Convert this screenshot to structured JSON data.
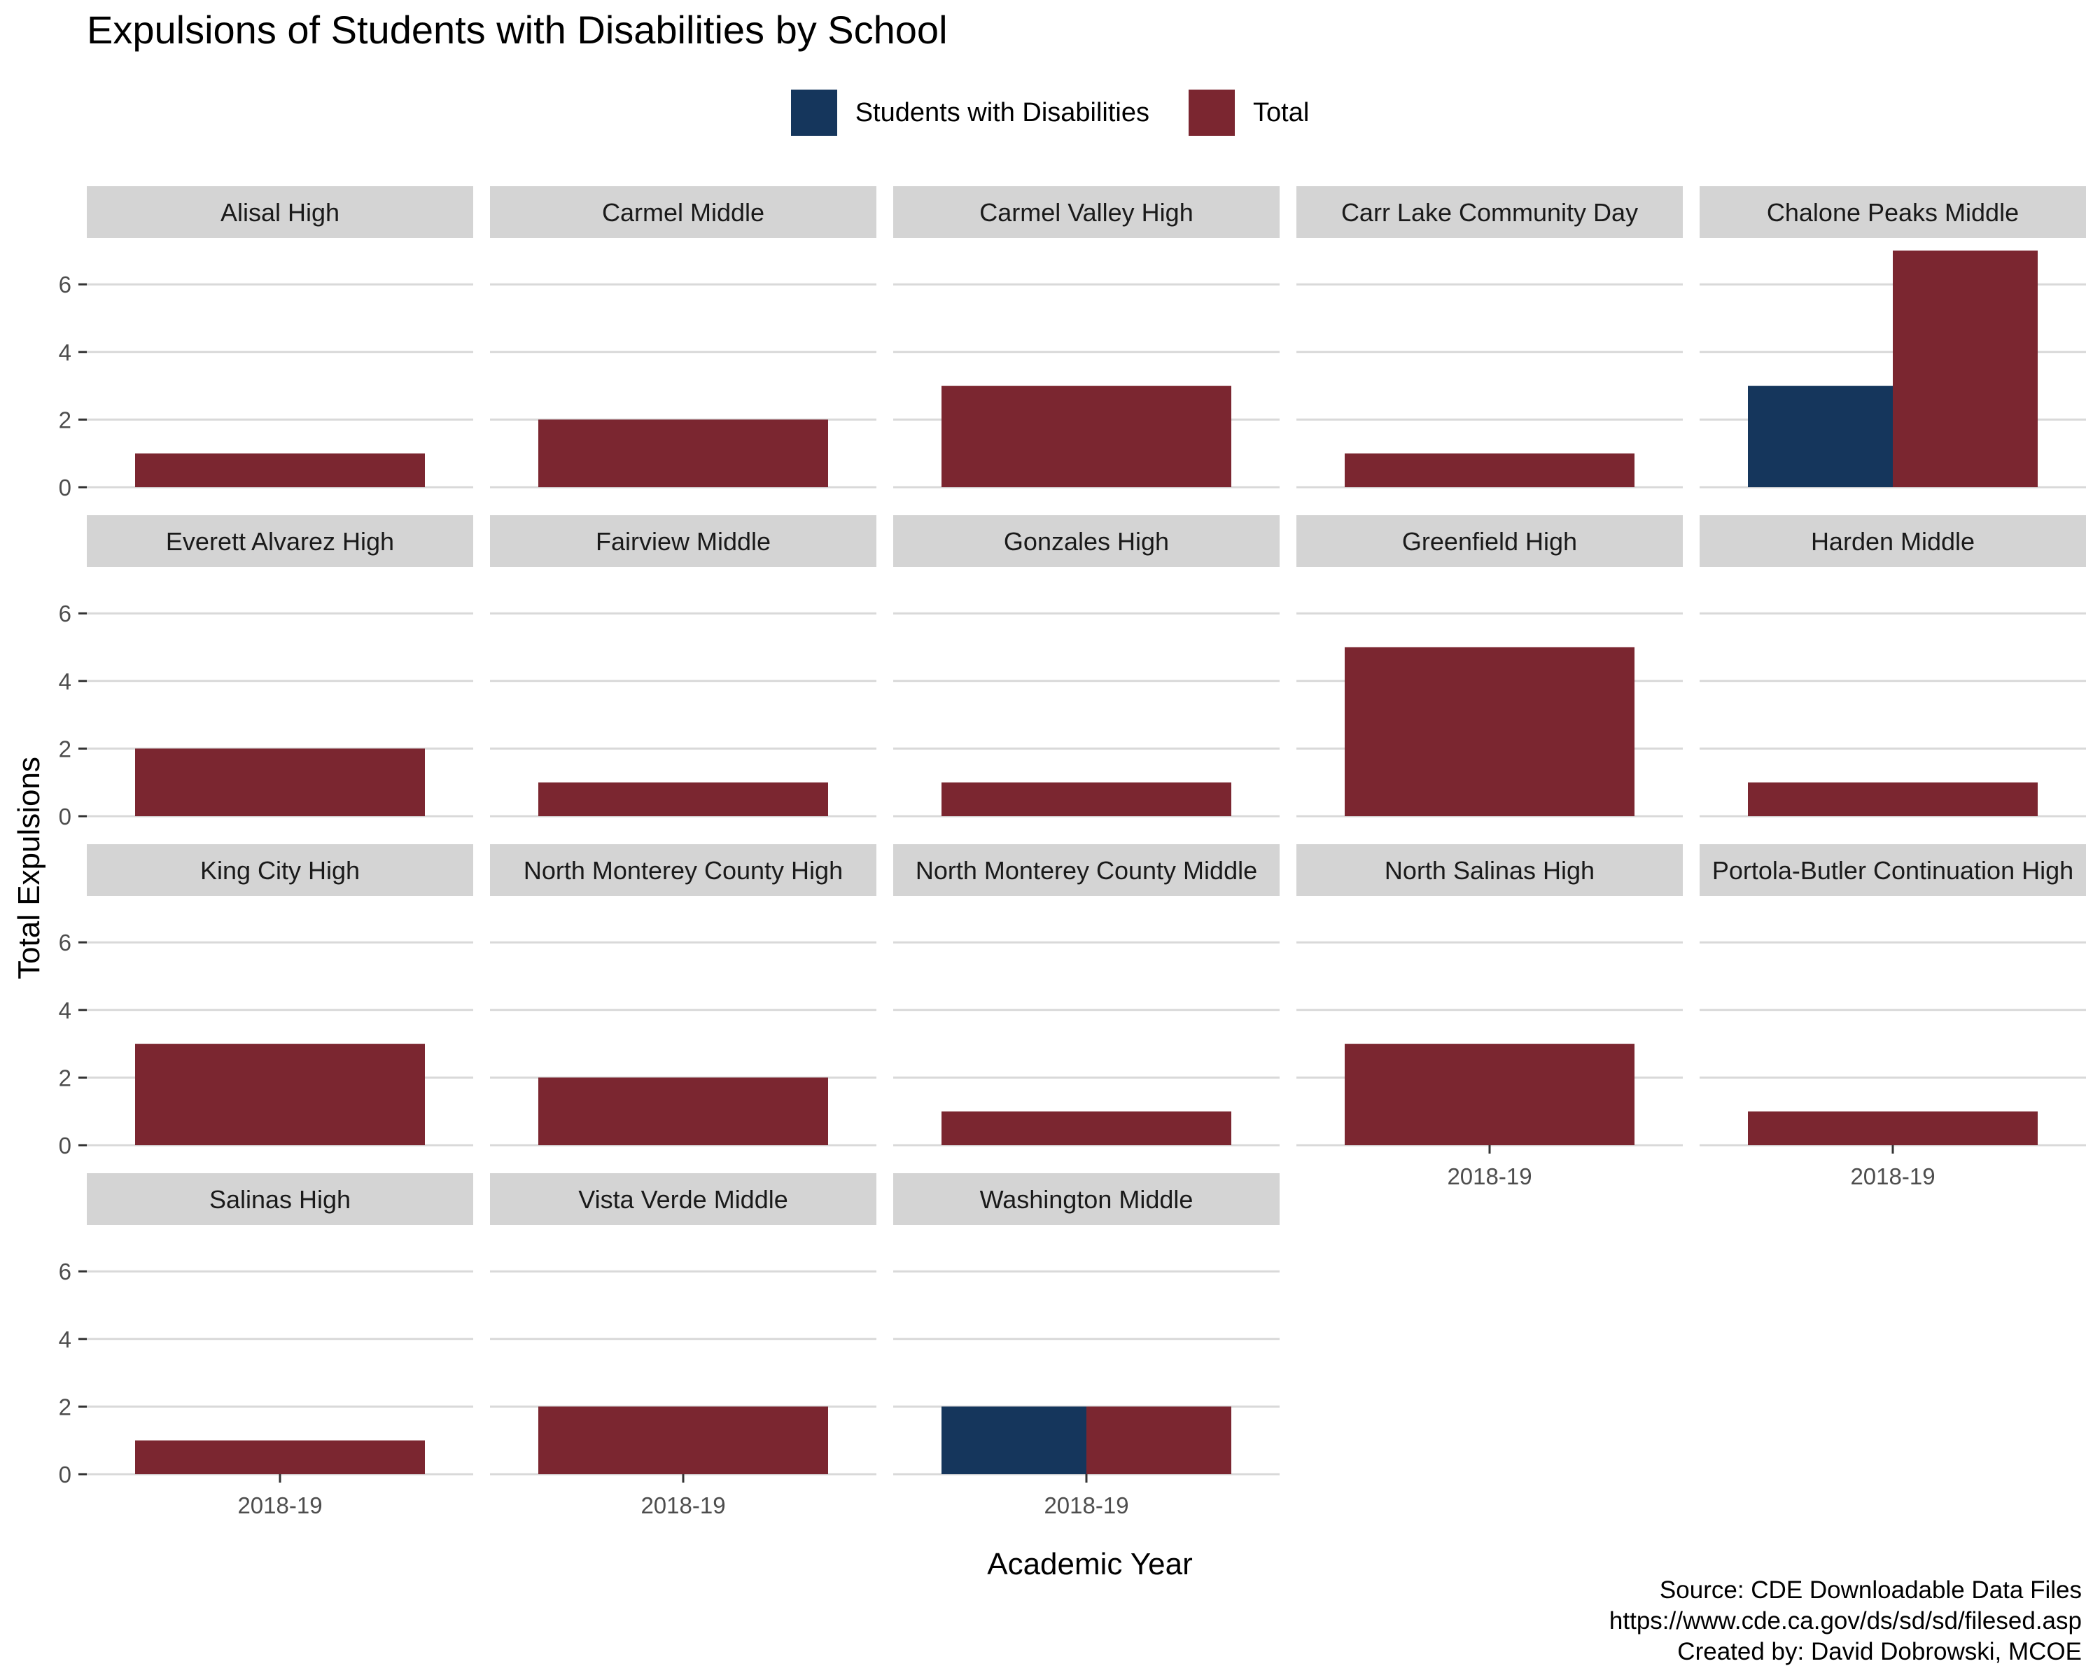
{
  "chart_data": {
    "type": "bar",
    "title": "Expulsions of Students with Disabilities by School",
    "xlabel": "Academic Year",
    "ylabel": "Total Expulsions",
    "ylim": [
      0,
      7
    ],
    "y_ticks": [
      0,
      2,
      4,
      6
    ],
    "categories": [
      "2018-19"
    ],
    "legend": {
      "placement": "top",
      "entries": [
        {
          "name": "Students with Disabilities",
          "color": "#15365c"
        },
        {
          "name": "Total",
          "color": "#7b2630"
        }
      ]
    },
    "grid": true,
    "facets": [
      {
        "school": "Alisal High",
        "students_with_disabilities": null,
        "total": 1
      },
      {
        "school": "Carmel Middle",
        "students_with_disabilities": null,
        "total": 2
      },
      {
        "school": "Carmel Valley High",
        "students_with_disabilities": null,
        "total": 3
      },
      {
        "school": "Carr Lake Community Day",
        "students_with_disabilities": null,
        "total": 1
      },
      {
        "school": "Chalone Peaks Middle",
        "students_with_disabilities": 3,
        "total": 7
      },
      {
        "school": "Everett Alvarez High",
        "students_with_disabilities": null,
        "total": 2
      },
      {
        "school": "Fairview Middle",
        "students_with_disabilities": null,
        "total": 1
      },
      {
        "school": "Gonzales High",
        "students_with_disabilities": null,
        "total": 1
      },
      {
        "school": "Greenfield High",
        "students_with_disabilities": null,
        "total": 5
      },
      {
        "school": "Harden Middle",
        "students_with_disabilities": null,
        "total": 1
      },
      {
        "school": "King City High",
        "students_with_disabilities": null,
        "total": 3
      },
      {
        "school": "North Monterey County High",
        "students_with_disabilities": null,
        "total": 2
      },
      {
        "school": "North Monterey County Middle",
        "students_with_disabilities": null,
        "total": 1
      },
      {
        "school": "North Salinas High",
        "students_with_disabilities": null,
        "total": 3
      },
      {
        "school": "Portola-Butler Continuation High",
        "students_with_disabilities": null,
        "total": 1
      },
      {
        "school": "Salinas High",
        "students_with_disabilities": null,
        "total": 1
      },
      {
        "school": "Vista Verde Middle",
        "students_with_disabilities": null,
        "total": 2
      },
      {
        "school": "Washington Middle",
        "students_with_disabilities": 2,
        "total": 2
      }
    ]
  },
  "caption": {
    "line1": "Source: CDE Downloadable Data Files",
    "line2": "https://www.cde.ca.gov/ds/sd/sd/filesed.asp",
    "line3": "Created by: David Dobrowski, MCOE"
  }
}
